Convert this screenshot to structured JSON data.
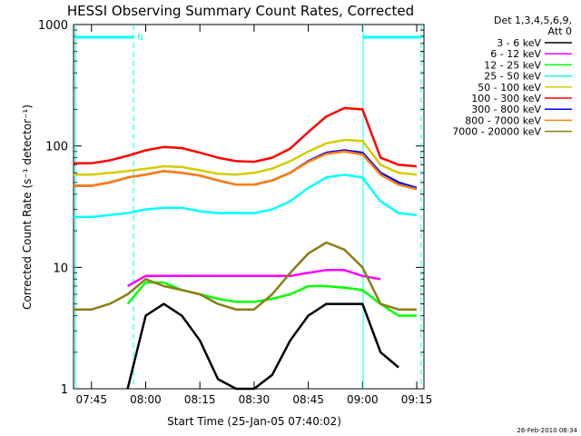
{
  "chart_data": {
    "type": "line",
    "title": "HESSI Observing Summary Count Rates, Corrected",
    "xlabel": "Start Time (25-Jan-05 07:40:02)",
    "ylabel": "Corrected Count Rate (s⁻¹ detector⁻¹)",
    "x_scale": "time",
    "y_scale": "log",
    "xlim": [
      "07:40:02",
      "09:17"
    ],
    "ylim": [
      1,
      1000
    ],
    "x_ticks": [
      "07:45",
      "08:00",
      "08:15",
      "08:30",
      "08:45",
      "09:00",
      "09:15"
    ],
    "y_ticks": [
      "1",
      "10",
      "100",
      "1000"
    ],
    "legend_position": "top-right",
    "legend_header": [
      "Det 1,3,4,5,6,9,",
      "Att 0"
    ],
    "annotations": {
      "night_marker": "N",
      "timestamp": "26-Feb-2010 08:34"
    },
    "x": [
      "07:40",
      "07:45",
      "07:50",
      "07:55",
      "08:00",
      "08:05",
      "08:10",
      "08:15",
      "08:20",
      "08:25",
      "08:30",
      "08:35",
      "08:40",
      "08:45",
      "08:50",
      "08:55",
      "09:00",
      "09:05",
      "09:10",
      "09:15"
    ],
    "series": [
      {
        "name": "3 - 6 keV",
        "color": "#000000",
        "values": [
          null,
          null,
          null,
          1,
          4,
          5,
          4,
          2.5,
          1.2,
          1,
          1,
          1.3,
          2.5,
          4,
          5,
          5,
          5,
          2,
          1.5,
          null
        ]
      },
      {
        "name": "6 - 12 keV",
        "color": "#ff00ff",
        "values": [
          null,
          null,
          null,
          7,
          8.5,
          8.5,
          8.5,
          8.5,
          8.5,
          8.5,
          8.5,
          8.5,
          8.5,
          9,
          9.5,
          9.5,
          8.5,
          8,
          null,
          null
        ]
      },
      {
        "name": "12 - 25 keV",
        "color": "#00ff00",
        "values": [
          null,
          null,
          null,
          5,
          7.5,
          7.5,
          6.5,
          6,
          5.5,
          5.2,
          5.2,
          5.5,
          6,
          7,
          7,
          6.8,
          6.5,
          5,
          4,
          4
        ]
      },
      {
        "name": "25 - 50 keV",
        "color": "#00ffff",
        "values": [
          26,
          26,
          27,
          28,
          30,
          31,
          31,
          29,
          28,
          28,
          28,
          30,
          35,
          45,
          55,
          58,
          55,
          35,
          28,
          27
        ]
      },
      {
        "name": "50 - 100 keV",
        "color": "#d4cc00",
        "values": [
          58,
          58,
          60,
          62,
          65,
          68,
          67,
          63,
          59,
          58,
          60,
          65,
          75,
          90,
          105,
          112,
          110,
          70,
          60,
          58
        ]
      },
      {
        "name": "100 - 300 keV",
        "color": "#ff0000",
        "values": [
          72,
          72,
          76,
          83,
          92,
          98,
          96,
          88,
          80,
          75,
          74,
          80,
          95,
          130,
          175,
          205,
          200,
          80,
          70,
          68
        ]
      },
      {
        "name": "300 - 800 keV",
        "color": "#0000ff",
        "values": [
          47,
          47,
          50,
          55,
          58,
          62,
          60,
          57,
          52,
          48,
          48,
          52,
          60,
          75,
          88,
          92,
          88,
          60,
          50,
          45
        ]
      },
      {
        "name": "800 - 7000 keV",
        "color": "#ff8000",
        "values": [
          47,
          47,
          50,
          55,
          58,
          62,
          60,
          57,
          52,
          48,
          48,
          52,
          60,
          74,
          86,
          90,
          85,
          58,
          48,
          44
        ]
      },
      {
        "name": "7000 - 20000 keV",
        "color": "#8b7d14",
        "values": [
          4.5,
          4.5,
          5,
          6,
          8,
          7,
          6.5,
          6,
          5,
          4.5,
          4.5,
          6,
          9,
          13,
          16,
          14,
          10,
          5,
          4.5,
          4.5
        ]
      }
    ]
  }
}
